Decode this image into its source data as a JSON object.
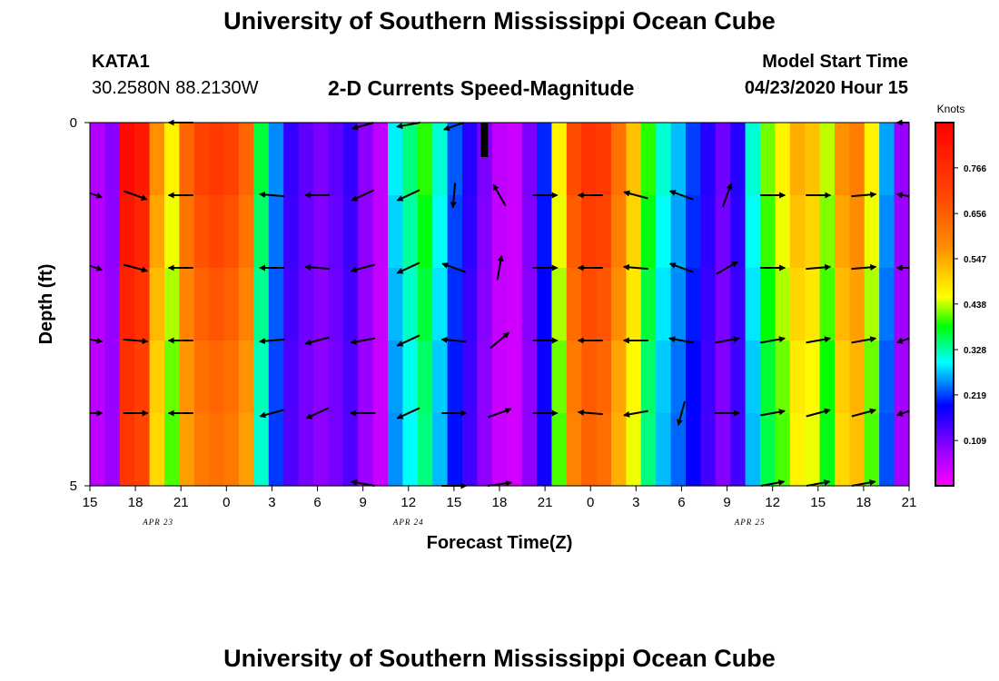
{
  "header": {
    "title": "University of Southern Mississippi Ocean Cube",
    "station": "KATA1",
    "coords": "30.2580N 88.2130W",
    "chart_title": "2-D Currents Speed-Magnitude",
    "model_label": "Model Start Time",
    "model_time": "04/23/2020 Hour 15"
  },
  "footer": {
    "title": "University of Southern Mississippi Ocean Cube"
  },
  "chart_data": {
    "type": "heatmap",
    "title": "2-D Currents Speed-Magnitude",
    "xlabel": "Forecast Time(Z)",
    "ylabel": "Depth (ft)",
    "xlim": [
      0,
      54
    ],
    "ylim": [
      0,
      5
    ],
    "x_ticks": [
      {
        "hour": 0,
        "label": "15"
      },
      {
        "hour": 3,
        "label": "18"
      },
      {
        "hour": 6,
        "label": "21"
      },
      {
        "hour": 9,
        "label": "0"
      },
      {
        "hour": 12,
        "label": "3"
      },
      {
        "hour": 15,
        "label": "6"
      },
      {
        "hour": 18,
        "label": "9"
      },
      {
        "hour": 21,
        "label": "12"
      },
      {
        "hour": 24,
        "label": "15"
      },
      {
        "hour": 27,
        "label": "18"
      },
      {
        "hour": 30,
        "label": "21"
      },
      {
        "hour": 33,
        "label": "0"
      },
      {
        "hour": 36,
        "label": "3"
      },
      {
        "hour": 39,
        "label": "6"
      },
      {
        "hour": 42,
        "label": "9"
      },
      {
        "hour": 45,
        "label": "12"
      },
      {
        "hour": 48,
        "label": "15"
      },
      {
        "hour": 51,
        "label": "18"
      },
      {
        "hour": 54,
        "label": "21"
      }
    ],
    "y_ticks": [
      {
        "depth": 0,
        "label": "0"
      },
      {
        "depth": 5,
        "label": "5"
      }
    ],
    "date_labels": [
      {
        "hour": 4.5,
        "label": "APR 23"
      },
      {
        "hour": 21,
        "label": "APR 24"
      },
      {
        "hour": 43.5,
        "label": "APR 25"
      }
    ],
    "colorbar": {
      "unit": "Knots",
      "min": 0,
      "max": 0.875,
      "ticks": [
        "0.109",
        "0.219",
        "0.328",
        "0.438",
        "0.547",
        "0.656",
        "0.766"
      ]
    },
    "speed_profile": [
      0.06,
      0.09,
      0.82,
      0.78,
      0.55,
      0.45,
      0.62,
      0.68,
      0.7,
      0.68,
      0.62,
      0.35,
      0.24,
      0.15,
      0.12,
      0.1,
      0.12,
      0.15,
      0.09,
      0.05,
      0.28,
      0.33,
      0.38,
      0.3,
      0.22,
      0.16,
      0.1,
      0.05,
      0.04,
      0.1,
      0.2,
      0.45,
      0.66,
      0.72,
      0.7,
      0.6,
      0.5,
      0.38,
      0.3,
      0.26,
      0.21,
      0.16,
      0.11,
      0.16,
      0.3,
      0.4,
      0.45,
      0.52,
      0.5,
      0.42,
      0.55,
      0.58,
      0.45,
      0.25,
      0.08
    ],
    "vectors": [
      {
        "hour": 0,
        "depth": 1,
        "speed": 0.4,
        "dir": -10
      },
      {
        "hour": 0,
        "depth": 2,
        "speed": 0.4,
        "dir": -10
      },
      {
        "hour": 0,
        "depth": 3,
        "speed": 0.4,
        "dir": -5
      },
      {
        "hour": 0,
        "depth": 4,
        "speed": 0.4,
        "dir": 0
      },
      {
        "hour": 3,
        "depth": 1,
        "speed": 0.4,
        "dir": -20
      },
      {
        "hour": 3,
        "depth": 2,
        "speed": 0.4,
        "dir": -15
      },
      {
        "hour": 3,
        "depth": 3,
        "speed": 0.4,
        "dir": -5
      },
      {
        "hour": 3,
        "depth": 4,
        "speed": 0.4,
        "dir": 0
      },
      {
        "hour": 6,
        "depth": 0,
        "speed": 0.4,
        "dir": 180
      },
      {
        "hour": 6,
        "depth": 1,
        "speed": 0.4,
        "dir": 180
      },
      {
        "hour": 6,
        "depth": 2,
        "speed": 0.4,
        "dir": 180
      },
      {
        "hour": 6,
        "depth": 3,
        "speed": 0.4,
        "dir": 180
      },
      {
        "hour": 6,
        "depth": 4,
        "speed": 0.4,
        "dir": 180
      },
      {
        "hour": 12,
        "depth": 1,
        "speed": 0.4,
        "dir": 175
      },
      {
        "hour": 12,
        "depth": 2,
        "speed": 0.4,
        "dir": 180
      },
      {
        "hour": 12,
        "depth": 3,
        "speed": 0.4,
        "dir": 185
      },
      {
        "hour": 12,
        "depth": 4,
        "speed": 0.4,
        "dir": 195
      },
      {
        "hour": 15,
        "depth": 1,
        "speed": 0.4,
        "dir": 180
      },
      {
        "hour": 15,
        "depth": 2,
        "speed": 0.4,
        "dir": 175
      },
      {
        "hour": 15,
        "depth": 3,
        "speed": 0.4,
        "dir": 195
      },
      {
        "hour": 15,
        "depth": 4,
        "speed": 0.4,
        "dir": 205
      },
      {
        "hour": 18,
        "depth": 0,
        "speed": 0.4,
        "dir": 210
      },
      {
        "hour": 18,
        "depth": 1,
        "speed": 0.4,
        "dir": 205
      },
      {
        "hour": 18,
        "depth": 2,
        "speed": 0.4,
        "dir": 195
      },
      {
        "hour": 18,
        "depth": 3,
        "speed": 0.4,
        "dir": 190
      },
      {
        "hour": 18,
        "depth": 4,
        "speed": 0.4,
        "dir": 180
      },
      {
        "hour": 18,
        "depth": 5,
        "speed": 0.4,
        "dir": 160
      },
      {
        "hour": 21,
        "depth": 0,
        "speed": 0.4,
        "dir": 200
      },
      {
        "hour": 21,
        "depth": 1,
        "speed": 0.4,
        "dir": 205
      },
      {
        "hour": 21,
        "depth": 2,
        "speed": 0.4,
        "dir": 205
      },
      {
        "hour": 21,
        "depth": 3,
        "speed": 0.4,
        "dir": 205
      },
      {
        "hour": 21,
        "depth": 4,
        "speed": 0.4,
        "dir": 205
      },
      {
        "hour": 24,
        "depth": 0,
        "speed": 0.4,
        "dir": 215
      },
      {
        "hour": 24,
        "depth": 1,
        "speed": 0.4,
        "dir": 265
      },
      {
        "hour": 24,
        "depth": 2,
        "speed": 0.4,
        "dir": 160
      },
      {
        "hour": 24,
        "depth": 3,
        "speed": 0.4,
        "dir": 175
      },
      {
        "hour": 24,
        "depth": 4,
        "speed": 0.4,
        "dir": 0
      },
      {
        "hour": 24,
        "depth": 5,
        "speed": 0.4,
        "dir": 0
      },
      {
        "hour": 27,
        "depth": 1,
        "speed": 0.4,
        "dir": 120
      },
      {
        "hour": 27,
        "depth": 2,
        "speed": 0.4,
        "dir": 80
      },
      {
        "hour": 27,
        "depth": 3,
        "speed": 0.4,
        "dir": 40
      },
      {
        "hour": 27,
        "depth": 4,
        "speed": 0.4,
        "dir": 20
      },
      {
        "hour": 27,
        "depth": 5,
        "speed": 0.4,
        "dir": 15
      },
      {
        "hour": 30,
        "depth": 1,
        "speed": 0.4,
        "dir": 0
      },
      {
        "hour": 30,
        "depth": 2,
        "speed": 0.4,
        "dir": 0
      },
      {
        "hour": 30,
        "depth": 3,
        "speed": 0.4,
        "dir": 0
      },
      {
        "hour": 30,
        "depth": 4,
        "speed": 0.4,
        "dir": 0
      },
      {
        "hour": 33,
        "depth": 1,
        "speed": 0.4,
        "dir": 180
      },
      {
        "hour": 33,
        "depth": 2,
        "speed": 0.4,
        "dir": 180
      },
      {
        "hour": 33,
        "depth": 3,
        "speed": 0.4,
        "dir": 180
      },
      {
        "hour": 33,
        "depth": 4,
        "speed": 0.4,
        "dir": 175
      },
      {
        "hour": 36,
        "depth": 1,
        "speed": 0.4,
        "dir": 165
      },
      {
        "hour": 36,
        "depth": 2,
        "speed": 0.4,
        "dir": 175
      },
      {
        "hour": 36,
        "depth": 3,
        "speed": 0.4,
        "dir": 180
      },
      {
        "hour": 36,
        "depth": 4,
        "speed": 0.4,
        "dir": 190
      },
      {
        "hour": 39,
        "depth": 1,
        "speed": 0.4,
        "dir": 160
      },
      {
        "hour": 39,
        "depth": 2,
        "speed": 0.4,
        "dir": 160
      },
      {
        "hour": 39,
        "depth": 3,
        "speed": 0.4,
        "dir": 170
      },
      {
        "hour": 39,
        "depth": 4,
        "speed": 0.4,
        "dir": 255
      },
      {
        "hour": 42,
        "depth": 1,
        "speed": 0.4,
        "dir": 70
      },
      {
        "hour": 42,
        "depth": 2,
        "speed": 0.4,
        "dir": 30
      },
      {
        "hour": 42,
        "depth": 3,
        "speed": 0.4,
        "dir": 10
      },
      {
        "hour": 42,
        "depth": 4,
        "speed": 0.4,
        "dir": 0
      },
      {
        "hour": 45,
        "depth": 1,
        "speed": 0.4,
        "dir": 0
      },
      {
        "hour": 45,
        "depth": 2,
        "speed": 0.4,
        "dir": 0
      },
      {
        "hour": 45,
        "depth": 3,
        "speed": 0.4,
        "dir": 10
      },
      {
        "hour": 45,
        "depth": 4,
        "speed": 0.4,
        "dir": 10
      },
      {
        "hour": 45,
        "depth": 5,
        "speed": 0.4,
        "dir": 20
      },
      {
        "hour": 48,
        "depth": 1,
        "speed": 0.4,
        "dir": 0
      },
      {
        "hour": 48,
        "depth": 2,
        "speed": 0.4,
        "dir": 5
      },
      {
        "hour": 48,
        "depth": 3,
        "speed": 0.4,
        "dir": 10
      },
      {
        "hour": 48,
        "depth": 4,
        "speed": 0.4,
        "dir": 15
      },
      {
        "hour": 48,
        "depth": 5,
        "speed": 0.4,
        "dir": 20
      },
      {
        "hour": 51,
        "depth": 1,
        "speed": 0.4,
        "dir": 5
      },
      {
        "hour": 51,
        "depth": 2,
        "speed": 0.4,
        "dir": 5
      },
      {
        "hour": 51,
        "depth": 3,
        "speed": 0.4,
        "dir": 10
      },
      {
        "hour": 51,
        "depth": 4,
        "speed": 0.4,
        "dir": 15
      },
      {
        "hour": 51,
        "depth": 5,
        "speed": 0.4,
        "dir": 20
      },
      {
        "hour": 54,
        "depth": 1,
        "speed": 0.4,
        "dir": 175
      },
      {
        "hour": 54,
        "depth": 2,
        "speed": 0.4,
        "dir": 180
      },
      {
        "hour": 54,
        "depth": 3,
        "speed": 0.4,
        "dir": 190
      },
      {
        "hour": 54,
        "depth": 4,
        "speed": 0.4,
        "dir": 190
      },
      {
        "hour": 54,
        "depth": 0,
        "speed": 0.4,
        "dir": 180
      }
    ]
  }
}
